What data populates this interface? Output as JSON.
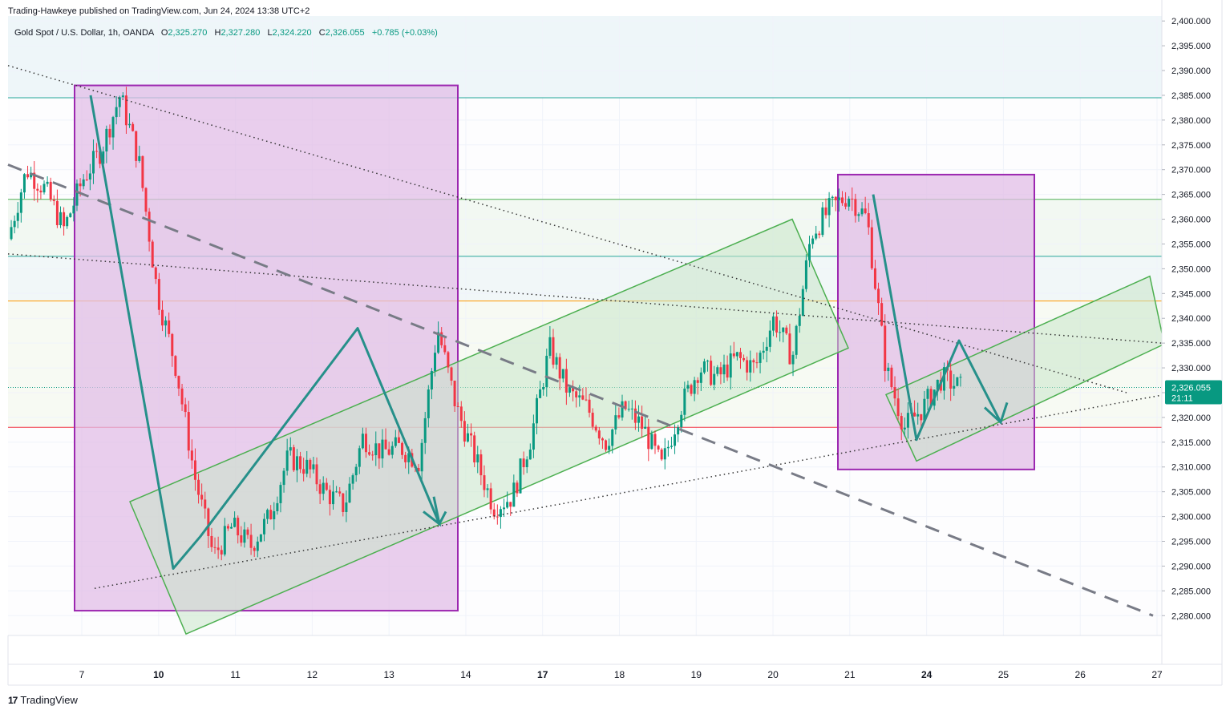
{
  "publisher": "Trading-Hawkeye published on TradingView.com, Jun 24, 2024 13:38 UTC+2",
  "brand": "TradingView",
  "legend": {
    "symbol": "Gold Spot / U.S. Dollar, 1h, OANDA",
    "open_label": "O",
    "open": "2,325.270",
    "high_label": "H",
    "high": "2,327.280",
    "low_label": "L",
    "low": "2,324.220",
    "close_label": "C",
    "close": "2,326.055",
    "change": "+0.785 (+0.03%)"
  },
  "price_badge": {
    "price": "2,326.055",
    "countdown": "21:11"
  },
  "colors": {
    "up": "#089981",
    "down": "#f23645",
    "grid": "#f0f3fa",
    "box_fill": "#e1bee7",
    "box_stroke": "#9c27b0",
    "channel_fill": "#c8e6c9",
    "channel_stroke": "#4caf50",
    "zigzag": "#26908a"
  },
  "chart_data": {
    "type": "candlestick",
    "title": "Gold Spot / U.S. Dollar, 1h, OANDA",
    "ylim": [
      2276,
      2401
    ],
    "y_ticks": [
      "2,280.000",
      "2,285.000",
      "2,290.000",
      "2,295.000",
      "2,300.000",
      "2,305.000",
      "2,310.000",
      "2,315.000",
      "2,320.000",
      "2,325.000",
      "2,330.000",
      "2,335.000",
      "2,340.000",
      "2,345.000",
      "2,350.000",
      "2,355.000",
      "2,360.000",
      "2,365.000",
      "2,370.000",
      "2,375.000",
      "2,380.000",
      "2,385.000",
      "2,390.000",
      "2,395.000",
      "2,400.000"
    ],
    "x_ticks": [
      {
        "label": "7",
        "bold": false
      },
      {
        "label": "10",
        "bold": true
      },
      {
        "label": "11",
        "bold": false
      },
      {
        "label": "12",
        "bold": false
      },
      {
        "label": "13",
        "bold": false
      },
      {
        "label": "14",
        "bold": false
      },
      {
        "label": "17",
        "bold": true
      },
      {
        "label": "18",
        "bold": false
      },
      {
        "label": "19",
        "bold": false
      },
      {
        "label": "20",
        "bold": false
      },
      {
        "label": "21",
        "bold": false
      },
      {
        "label": "24",
        "bold": true
      },
      {
        "label": "25",
        "bold": false
      },
      {
        "label": "26",
        "bold": false
      },
      {
        "label": "27",
        "bold": false
      }
    ],
    "price_path": [
      [
        0,
        2356
      ],
      [
        1,
        2370
      ],
      [
        2,
        2366
      ],
      [
        3,
        2358
      ],
      [
        4,
        2368
      ],
      [
        5,
        2374
      ],
      [
        6,
        2385
      ],
      [
        7,
        2372
      ],
      [
        8,
        2345
      ],
      [
        9,
        2330
      ],
      [
        10,
        2308
      ],
      [
        11,
        2292
      ],
      [
        12,
        2298
      ],
      [
        13,
        2294
      ],
      [
        14,
        2300
      ],
      [
        15,
        2312
      ],
      [
        16,
        2310
      ],
      [
        17,
        2305
      ],
      [
        18,
        2302
      ],
      [
        19,
        2316
      ],
      [
        20,
        2313
      ],
      [
        21,
        2314
      ],
      [
        22,
        2311
      ],
      [
        23,
        2338
      ],
      [
        24,
        2322
      ],
      [
        25,
        2312
      ],
      [
        26,
        2302
      ],
      [
        27,
        2304
      ],
      [
        28,
        2316
      ],
      [
        29,
        2334
      ],
      [
        30,
        2325
      ],
      [
        31,
        2322
      ],
      [
        32,
        2315
      ],
      [
        33,
        2322
      ],
      [
        34,
        2318
      ],
      [
        35,
        2310
      ],
      [
        36,
        2322
      ],
      [
        37,
        2330
      ],
      [
        38,
        2328
      ],
      [
        39,
        2332
      ],
      [
        40,
        2330
      ],
      [
        41,
        2340
      ],
      [
        42,
        2332
      ],
      [
        43,
        2357
      ],
      [
        44,
        2362
      ],
      [
        45,
        2365
      ],
      [
        46,
        2360
      ],
      [
        47,
        2330
      ],
      [
        48,
        2318
      ],
      [
        49,
        2322
      ],
      [
        50,
        2328
      ],
      [
        51,
        2326
      ]
    ],
    "horizontal_levels": [
      {
        "price": 2384.5,
        "color": "#26a69a"
      },
      {
        "price": 2364.0,
        "color": "#4caf50"
      },
      {
        "price": 2352.5,
        "color": "#26a69a"
      },
      {
        "price": 2343.5,
        "color": "#ff9800"
      },
      {
        "price": 2318.0,
        "color": "#f23645"
      }
    ],
    "current_price": 2326.055
  }
}
